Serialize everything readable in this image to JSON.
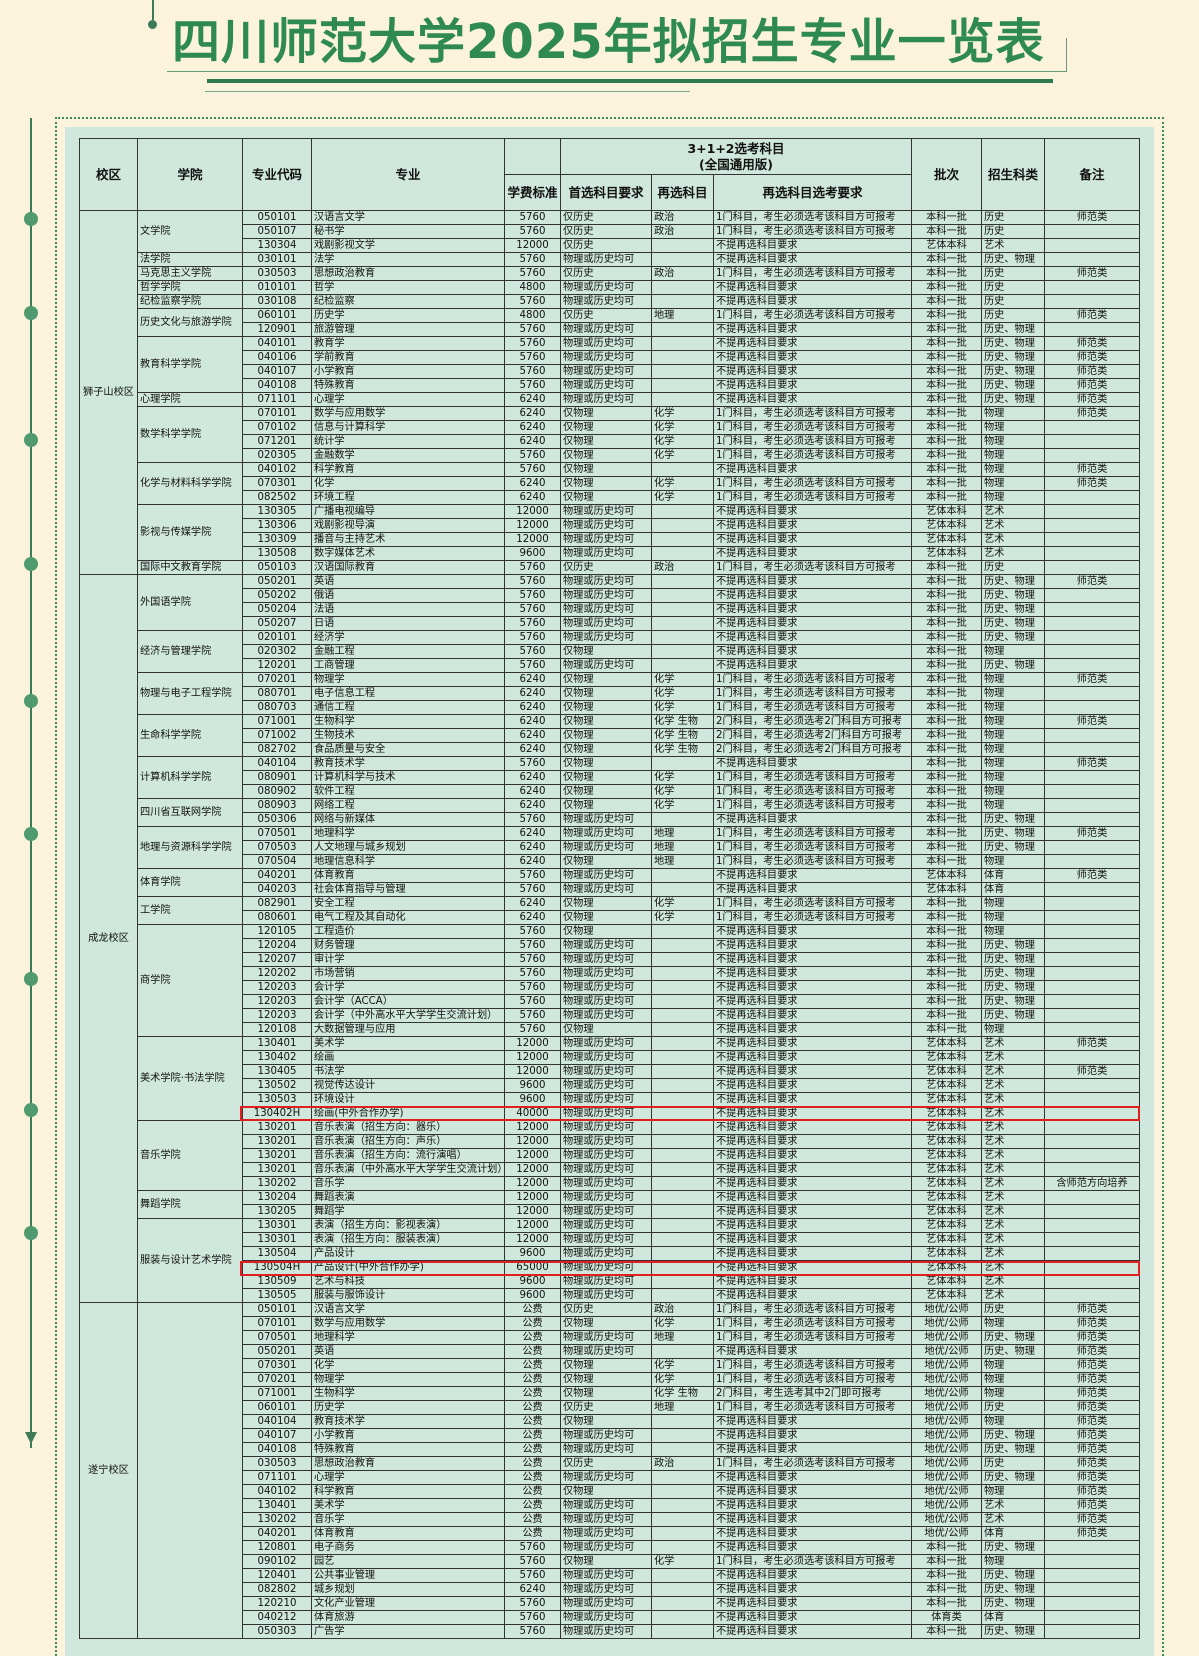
{
  "title": "四川师范大学2025年拟招生专业一览表",
  "header": {
    "campus": "校区",
    "college": "学院",
    "code": "专业代码",
    "major": "专业",
    "subjects_group": "3+1+2选考科目",
    "subjects_group_sub": "(全国通用版)",
    "fee": "学费标准",
    "first": "首选科目要求",
    "resel": "再选科目",
    "resel_req": "再选科目选考要求",
    "batch": "批次",
    "category": "招生科类",
    "note": "备注"
  },
  "rows": [
    [
      "狮子山校区",
      "文学院",
      "050101",
      "汉语言文学",
      "5760",
      "仅历史",
      "政治",
      "1门科目，考生必须选考该科目方可报考",
      "本科一批",
      "历史",
      "师范类"
    ],
    [
      "狮子山校区",
      "文学院",
      "050107",
      "秘书学",
      "5760",
      "仅历史",
      "政治",
      "1门科目，考生必须选考该科目方可报考",
      "本科一批",
      "历史",
      ""
    ],
    [
      "狮子山校区",
      "文学院",
      "130304",
      "戏剧影视文学",
      "12000",
      "仅历史",
      "",
      "不提再选科目要求",
      "艺体本科",
      "艺术",
      ""
    ],
    [
      "狮子山校区",
      "法学院",
      "030101",
      "法学",
      "5760",
      "物理或历史均可",
      "",
      "不提再选科目要求",
      "本科一批",
      "历史、物理",
      ""
    ],
    [
      "狮子山校区",
      "马克思主义学院",
      "030503",
      "思想政治教育",
      "5760",
      "仅历史",
      "政治",
      "1门科目，考生必须选考该科目方可报考",
      "本科一批",
      "历史",
      "师范类"
    ],
    [
      "狮子山校区",
      "哲学学院",
      "010101",
      "哲学",
      "4800",
      "物理或历史均可",
      "",
      "不提再选科目要求",
      "本科一批",
      "历史",
      ""
    ],
    [
      "狮子山校区",
      "纪检监察学院",
      "030108",
      "纪检监察",
      "5760",
      "物理或历史均可",
      "",
      "不提再选科目要求",
      "本科一批",
      "历史",
      ""
    ],
    [
      "狮子山校区",
      "历史文化与旅游学院",
      "060101",
      "历史学",
      "4800",
      "仅历史",
      "地理",
      "1门科目，考生必须选考该科目方可报考",
      "本科一批",
      "历史",
      "师范类"
    ],
    [
      "狮子山校区",
      "历史文化与旅游学院",
      "120901",
      "旅游管理",
      "5760",
      "物理或历史均可",
      "",
      "不提再选科目要求",
      "本科一批",
      "历史、物理",
      ""
    ],
    [
      "狮子山校区",
      "教育科学学院",
      "040101",
      "教育学",
      "5760",
      "物理或历史均可",
      "",
      "不提再选科目要求",
      "本科一批",
      "历史、物理",
      "师范类"
    ],
    [
      "狮子山校区",
      "教育科学学院",
      "040106",
      "学前教育",
      "5760",
      "物理或历史均可",
      "",
      "不提再选科目要求",
      "本科一批",
      "历史、物理",
      "师范类"
    ],
    [
      "狮子山校区",
      "教育科学学院",
      "040107",
      "小学教育",
      "5760",
      "物理或历史均可",
      "",
      "不提再选科目要求",
      "本科一批",
      "历史、物理",
      "师范类"
    ],
    [
      "狮子山校区",
      "教育科学学院",
      "040108",
      "特殊教育",
      "5760",
      "物理或历史均可",
      "",
      "不提再选科目要求",
      "本科一批",
      "历史、物理",
      "师范类"
    ],
    [
      "狮子山校区",
      "心理学院",
      "071101",
      "心理学",
      "6240",
      "物理或历史均可",
      "",
      "不提再选科目要求",
      "本科一批",
      "历史、物理",
      "师范类"
    ],
    [
      "狮子山校区",
      "数学科学学院",
      "070101",
      "数学与应用数学",
      "6240",
      "仅物理",
      "化学",
      "1门科目，考生必须选考该科目方可报考",
      "本科一批",
      "物理",
      "师范类"
    ],
    [
      "狮子山校区",
      "数学科学学院",
      "070102",
      "信息与计算科学",
      "6240",
      "仅物理",
      "化学",
      "1门科目，考生必须选考该科目方可报考",
      "本科一批",
      "物理",
      ""
    ],
    [
      "狮子山校区",
      "数学科学学院",
      "071201",
      "统计学",
      "6240",
      "仅物理",
      "化学",
      "1门科目，考生必须选考该科目方可报考",
      "本科一批",
      "物理",
      ""
    ],
    [
      "狮子山校区",
      "数学科学学院",
      "020305",
      "金融数学",
      "5760",
      "仅物理",
      "化学",
      "1门科目，考生必须选考该科目方可报考",
      "本科一批",
      "物理",
      ""
    ],
    [
      "狮子山校区",
      "化学与材料科学学院",
      "040102",
      "科学教育",
      "5760",
      "仅物理",
      "",
      "不提再选科目要求",
      "本科一批",
      "物理",
      "师范类"
    ],
    [
      "狮子山校区",
      "化学与材料科学学院",
      "070301",
      "化学",
      "6240",
      "仅物理",
      "化学",
      "1门科目，考生必须选考该科目方可报考",
      "本科一批",
      "物理",
      "师范类"
    ],
    [
      "狮子山校区",
      "化学与材料科学学院",
      "082502",
      "环境工程",
      "6240",
      "仅物理",
      "化学",
      "1门科目，考生必须选考该科目方可报考",
      "本科一批",
      "物理",
      ""
    ],
    [
      "狮子山校区",
      "影视与传媒学院",
      "130305",
      "广播电视编导",
      "12000",
      "物理或历史均可",
      "",
      "不提再选科目要求",
      "艺体本科",
      "艺术",
      ""
    ],
    [
      "狮子山校区",
      "影视与传媒学院",
      "130306",
      "戏剧影视导演",
      "12000",
      "物理或历史均可",
      "",
      "不提再选科目要求",
      "艺体本科",
      "艺术",
      ""
    ],
    [
      "狮子山校区",
      "影视与传媒学院",
      "130309",
      "播音与主持艺术",
      "12000",
      "物理或历史均可",
      "",
      "不提再选科目要求",
      "艺体本科",
      "艺术",
      ""
    ],
    [
      "狮子山校区",
      "影视与传媒学院",
      "130508",
      "数字媒体艺术",
      "9600",
      "物理或历史均可",
      "",
      "不提再选科目要求",
      "艺体本科",
      "艺术",
      ""
    ],
    [
      "狮子山校区",
      "国际中文教育学院",
      "050103",
      "汉语国际教育",
      "5760",
      "仅历史",
      "政治",
      "1门科目，考生必须选考该科目方可报考",
      "本科一批",
      "历史",
      ""
    ],
    [
      "成龙校区",
      "外国语学院",
      "050201",
      "英语",
      "5760",
      "物理或历史均可",
      "",
      "不提再选科目要求",
      "本科一批",
      "历史、物理",
      "师范类"
    ],
    [
      "成龙校区",
      "外国语学院",
      "050202",
      "俄语",
      "5760",
      "物理或历史均可",
      "",
      "不提再选科目要求",
      "本科一批",
      "历史、物理",
      ""
    ],
    [
      "成龙校区",
      "外国语学院",
      "050204",
      "法语",
      "5760",
      "物理或历史均可",
      "",
      "不提再选科目要求",
      "本科一批",
      "历史、物理",
      ""
    ],
    [
      "成龙校区",
      "外国语学院",
      "050207",
      "日语",
      "5760",
      "物理或历史均可",
      "",
      "不提再选科目要求",
      "本科一批",
      "历史、物理",
      ""
    ],
    [
      "成龙校区",
      "经济与管理学院",
      "020101",
      "经济学",
      "5760",
      "物理或历史均可",
      "",
      "不提再选科目要求",
      "本科一批",
      "历史、物理",
      ""
    ],
    [
      "成龙校区",
      "经济与管理学院",
      "020302",
      "金融工程",
      "5760",
      "仅物理",
      "",
      "不提再选科目要求",
      "本科一批",
      "物理",
      ""
    ],
    [
      "成龙校区",
      "经济与管理学院",
      "120201",
      "工商管理",
      "5760",
      "物理或历史均可",
      "",
      "不提再选科目要求",
      "本科一批",
      "历史、物理",
      ""
    ],
    [
      "成龙校区",
      "物理与电子工程学院",
      "070201",
      "物理学",
      "6240",
      "仅物理",
      "化学",
      "1门科目，考生必须选考该科目方可报考",
      "本科一批",
      "物理",
      "师范类"
    ],
    [
      "成龙校区",
      "物理与电子工程学院",
      "080701",
      "电子信息工程",
      "6240",
      "仅物理",
      "化学",
      "1门科目，考生必须选考该科目方可报考",
      "本科一批",
      "物理",
      ""
    ],
    [
      "成龙校区",
      "物理与电子工程学院",
      "080703",
      "通信工程",
      "6240",
      "仅物理",
      "化学",
      "1门科目，考生必须选考该科目方可报考",
      "本科一批",
      "物理",
      ""
    ],
    [
      "成龙校区",
      "生命科学学院",
      "071001",
      "生物科学",
      "6240",
      "仅物理",
      "化学 生物",
      "2门科目，考生必须选考2门科目方可报考",
      "本科一批",
      "物理",
      "师范类"
    ],
    [
      "成龙校区",
      "生命科学学院",
      "071002",
      "生物技术",
      "6240",
      "仅物理",
      "化学 生物",
      "2门科目，考生必须选考2门科目方可报考",
      "本科一批",
      "物理",
      ""
    ],
    [
      "成龙校区",
      "生命科学学院",
      "082702",
      "食品质量与安全",
      "6240",
      "仅物理",
      "化学 生物",
      "2门科目，考生必须选考2门科目方可报考",
      "本科一批",
      "物理",
      ""
    ],
    [
      "成龙校区",
      "计算机科学学院",
      "040104",
      "教育技术学",
      "5760",
      "仅物理",
      "",
      "不提再选科目要求",
      "本科一批",
      "物理",
      "师范类"
    ],
    [
      "成龙校区",
      "计算机科学学院",
      "080901",
      "计算机科学与技术",
      "6240",
      "仅物理",
      "化学",
      "1门科目，考生必须选考该科目方可报考",
      "本科一批",
      "物理",
      ""
    ],
    [
      "成龙校区",
      "计算机科学学院",
      "080902",
      "软件工程",
      "6240",
      "仅物理",
      "化学",
      "1门科目，考生必须选考该科目方可报考",
      "本科一批",
      "物理",
      ""
    ],
    [
      "成龙校区",
      "四川省互联网学院",
      "080903",
      "网络工程",
      "6240",
      "仅物理",
      "化学",
      "1门科目，考生必须选考该科目方可报考",
      "本科一批",
      "物理",
      ""
    ],
    [
      "成龙校区",
      "四川省互联网学院",
      "050306",
      "网络与新媒体",
      "5760",
      "物理或历史均可",
      "",
      "不提再选科目要求",
      "本科一批",
      "历史、物理",
      ""
    ],
    [
      "成龙校区",
      "地理与资源科学学院",
      "070501",
      "地理科学",
      "6240",
      "物理或历史均可",
      "地理",
      "1门科目，考生必须选考该科目方可报考",
      "本科一批",
      "历史、物理",
      "师范类"
    ],
    [
      "成龙校区",
      "地理与资源科学学院",
      "070503",
      "人文地理与城乡规划",
      "6240",
      "物理或历史均可",
      "地理",
      "1门科目，考生必须选考该科目方可报考",
      "本科一批",
      "历史、物理",
      ""
    ],
    [
      "成龙校区",
      "地理与资源科学学院",
      "070504",
      "地理信息科学",
      "6240",
      "仅物理",
      "地理",
      "1门科目，考生必须选考该科目方可报考",
      "本科一批",
      "物理",
      ""
    ],
    [
      "成龙校区",
      "体育学院",
      "040201",
      "体育教育",
      "5760",
      "物理或历史均可",
      "",
      "不提再选科目要求",
      "艺体本科",
      "体育",
      "师范类"
    ],
    [
      "成龙校区",
      "体育学院",
      "040203",
      "社会体育指导与管理",
      "5760",
      "物理或历史均可",
      "",
      "不提再选科目要求",
      "艺体本科",
      "体育",
      ""
    ],
    [
      "成龙校区",
      "工学院",
      "082901",
      "安全工程",
      "6240",
      "仅物理",
      "化学",
      "1门科目，考生必须选考该科目方可报考",
      "本科一批",
      "物理",
      ""
    ],
    [
      "成龙校区",
      "工学院",
      "080601",
      "电气工程及其自动化",
      "6240",
      "仅物理",
      "化学",
      "1门科目，考生必须选考该科目方可报考",
      "本科一批",
      "物理",
      ""
    ],
    [
      "成龙校区",
      "商学院",
      "120105",
      "工程造价",
      "5760",
      "仅物理",
      "",
      "不提再选科目要求",
      "本科一批",
      "物理",
      ""
    ],
    [
      "成龙校区",
      "商学院",
      "120204",
      "财务管理",
      "5760",
      "物理或历史均可",
      "",
      "不提再选科目要求",
      "本科一批",
      "历史、物理",
      ""
    ],
    [
      "成龙校区",
      "商学院",
      "120207",
      "审计学",
      "5760",
      "物理或历史均可",
      "",
      "不提再选科目要求",
      "本科一批",
      "历史、物理",
      ""
    ],
    [
      "成龙校区",
      "商学院",
      "120202",
      "市场营销",
      "5760",
      "物理或历史均可",
      "",
      "不提再选科目要求",
      "本科一批",
      "历史、物理",
      ""
    ],
    [
      "成龙校区",
      "商学院",
      "120203",
      "会计学",
      "5760",
      "物理或历史均可",
      "",
      "不提再选科目要求",
      "本科一批",
      "历史、物理",
      ""
    ],
    [
      "成龙校区",
      "商学院",
      "120203",
      "会计学（ACCA）",
      "5760",
      "物理或历史均可",
      "",
      "不提再选科目要求",
      "本科一批",
      "历史、物理",
      ""
    ],
    [
      "成龙校区",
      "商学院",
      "120203",
      "会计学（中外高水平大学学生交流计划）",
      "5760",
      "物理或历史均可",
      "",
      "不提再选科目要求",
      "本科一批",
      "历史、物理",
      ""
    ],
    [
      "成龙校区",
      "商学院",
      "120108",
      "大数据管理与应用",
      "5760",
      "仅物理",
      "",
      "不提再选科目要求",
      "本科一批",
      "物理",
      ""
    ],
    [
      "成龙校区",
      "美术学院·书法学院",
      "130401",
      "美术学",
      "12000",
      "物理或历史均可",
      "",
      "不提再选科目要求",
      "艺体本科",
      "艺术",
      "师范类"
    ],
    [
      "成龙校区",
      "美术学院·书法学院",
      "130402",
      "绘画",
      "12000",
      "物理或历史均可",
      "",
      "不提再选科目要求",
      "艺体本科",
      "艺术",
      ""
    ],
    [
      "成龙校区",
      "美术学院·书法学院",
      "130405",
      "书法学",
      "12000",
      "物理或历史均可",
      "",
      "不提再选科目要求",
      "艺体本科",
      "艺术",
      "师范类"
    ],
    [
      "成龙校区",
      "美术学院·书法学院",
      "130502",
      "视觉传达设计",
      "9600",
      "物理或历史均可",
      "",
      "不提再选科目要求",
      "艺体本科",
      "艺术",
      ""
    ],
    [
      "成龙校区",
      "美术学院·书法学院",
      "130503",
      "环境设计",
      "9600",
      "物理或历史均可",
      "",
      "不提再选科目要求",
      "艺体本科",
      "艺术",
      ""
    ],
    [
      "成龙校区",
      "美术学院·书法学院",
      "130402H",
      "绘画(中外合作办学)",
      "40000",
      "物理或历史均可",
      "",
      "不提再选科目要求",
      "艺体本科",
      "艺术",
      ""
    ],
    [
      "成龙校区",
      "音乐学院",
      "130201",
      "音乐表演（招生方向：器乐）",
      "12000",
      "物理或历史均可",
      "",
      "不提再选科目要求",
      "艺体本科",
      "艺术",
      ""
    ],
    [
      "成龙校区",
      "音乐学院",
      "130201",
      "音乐表演（招生方向：声乐）",
      "12000",
      "物理或历史均可",
      "",
      "不提再选科目要求",
      "艺体本科",
      "艺术",
      ""
    ],
    [
      "成龙校区",
      "音乐学院",
      "130201",
      "音乐表演（招生方向：流行演唱）",
      "12000",
      "物理或历史均可",
      "",
      "不提再选科目要求",
      "艺体本科",
      "艺术",
      ""
    ],
    [
      "成龙校区",
      "音乐学院",
      "130201",
      "音乐表演（中外高水平大学学生交流计划）",
      "12000",
      "物理或历史均可",
      "",
      "不提再选科目要求",
      "艺体本科",
      "艺术",
      ""
    ],
    [
      "成龙校区",
      "音乐学院",
      "130202",
      "音乐学",
      "12000",
      "物理或历史均可",
      "",
      "不提再选科目要求",
      "艺体本科",
      "艺术",
      "含师范方向培养"
    ],
    [
      "成龙校区",
      "舞蹈学院",
      "130204",
      "舞蹈表演",
      "12000",
      "物理或历史均可",
      "",
      "不提再选科目要求",
      "艺体本科",
      "艺术",
      ""
    ],
    [
      "成龙校区",
      "舞蹈学院",
      "130205",
      "舞蹈学",
      "12000",
      "物理或历史均可",
      "",
      "不提再选科目要求",
      "艺体本科",
      "艺术",
      ""
    ],
    [
      "成龙校区",
      "服装与设计艺术学院",
      "130301",
      "表演（招生方向：影视表演）",
      "12000",
      "物理或历史均可",
      "",
      "不提再选科目要求",
      "艺体本科",
      "艺术",
      ""
    ],
    [
      "成龙校区",
      "服装与设计艺术学院",
      "130301",
      "表演（招生方向：服装表演）",
      "12000",
      "物理或历史均可",
      "",
      "不提再选科目要求",
      "艺体本科",
      "艺术",
      ""
    ],
    [
      "成龙校区",
      "服装与设计艺术学院",
      "130504",
      "产品设计",
      "9600",
      "物理或历史均可",
      "",
      "不提再选科目要求",
      "艺体本科",
      "艺术",
      ""
    ],
    [
      "成龙校区",
      "服装与设计艺术学院",
      "130504H",
      "产品设计(中外合作办学)",
      "65000",
      "物理或历史均可",
      "",
      "不提再选科目要求",
      "艺体本科",
      "艺术",
      ""
    ],
    [
      "成龙校区",
      "服装与设计艺术学院",
      "130509",
      "艺术与科技",
      "9600",
      "物理或历史均可",
      "",
      "不提再选科目要求",
      "艺体本科",
      "艺术",
      ""
    ],
    [
      "成龙校区",
      "服装与设计艺术学院",
      "130505",
      "服装与服饰设计",
      "9600",
      "物理或历史均可",
      "",
      "不提再选科目要求",
      "艺体本科",
      "艺术",
      ""
    ],
    [
      "遂宁校区",
      "",
      "050101",
      "汉语言文学",
      "公费",
      "仅历史",
      "政治",
      "1门科目，考生必须选考该科目方可报考",
      "地优/公师",
      "历史",
      "师范类"
    ],
    [
      "遂宁校区",
      "",
      "070101",
      "数学与应用数学",
      "公费",
      "仅物理",
      "化学",
      "1门科目，考生必须选考该科目方可报考",
      "地优/公师",
      "物理",
      "师范类"
    ],
    [
      "遂宁校区",
      "",
      "070501",
      "地理科学",
      "公费",
      "物理或历史均可",
      "地理",
      "1门科目，考生必须选考该科目方可报考",
      "地优/公师",
      "历史、物理",
      "师范类"
    ],
    [
      "遂宁校区",
      "",
      "050201",
      "英语",
      "公费",
      "物理或历史均可",
      "",
      "不提再选科目要求",
      "地优/公师",
      "历史、物理",
      "师范类"
    ],
    [
      "遂宁校区",
      "",
      "070301",
      "化学",
      "公费",
      "仅物理",
      "化学",
      "1门科目，考生必须选考该科目方可报考",
      "地优/公师",
      "物理",
      "师范类"
    ],
    [
      "遂宁校区",
      "",
      "070201",
      "物理学",
      "公费",
      "仅物理",
      "化学",
      "1门科目，考生必须选考该科目方可报考",
      "地优/公师",
      "物理",
      "师范类"
    ],
    [
      "遂宁校区",
      "",
      "071001",
      "生物科学",
      "公费",
      "仅物理",
      "化学 生物",
      "2门科目，考生选考其中2门即可报考",
      "地优/公师",
      "物理",
      "师范类"
    ],
    [
      "遂宁校区",
      "",
      "060101",
      "历史学",
      "公费",
      "仅历史",
      "地理",
      "1门科目，考生必须选考该科目方可报考",
      "地优/公师",
      "历史",
      "师范类"
    ],
    [
      "遂宁校区",
      "",
      "040104",
      "教育技术学",
      "公费",
      "仅物理",
      "",
      "不提再选科目要求",
      "地优/公师",
      "物理",
      "师范类"
    ],
    [
      "遂宁校区",
      "",
      "040107",
      "小学教育",
      "公费",
      "物理或历史均可",
      "",
      "不提再选科目要求",
      "地优/公师",
      "历史、物理",
      "师范类"
    ],
    [
      "遂宁校区",
      "",
      "040108",
      "特殊教育",
      "公费",
      "物理或历史均可",
      "",
      "不提再选科目要求",
      "地优/公师",
      "历史、物理",
      "师范类"
    ],
    [
      "遂宁校区",
      "",
      "030503",
      "思想政治教育",
      "公费",
      "仅历史",
      "政治",
      "1门科目，考生必须选考该科目方可报考",
      "地优/公师",
      "历史",
      "师范类"
    ],
    [
      "遂宁校区",
      "",
      "071101",
      "心理学",
      "公费",
      "物理或历史均可",
      "",
      "不提再选科目要求",
      "地优/公师",
      "历史、物理",
      "师范类"
    ],
    [
      "遂宁校区",
      "",
      "040102",
      "科学教育",
      "公费",
      "仅物理",
      "",
      "不提再选科目要求",
      "地优/公师",
      "物理",
      "师范类"
    ],
    [
      "遂宁校区",
      "",
      "130401",
      "美术学",
      "公费",
      "物理或历史均可",
      "",
      "不提再选科目要求",
      "地优/公师",
      "艺术",
      "师范类"
    ],
    [
      "遂宁校区",
      "",
      "130202",
      "音乐学",
      "公费",
      "物理或历史均可",
      "",
      "不提再选科目要求",
      "地优/公师",
      "艺术",
      "师范类"
    ],
    [
      "遂宁校区",
      "",
      "040201",
      "体育教育",
      "公费",
      "物理或历史均可",
      "",
      "不提再选科目要求",
      "地优/公师",
      "体育",
      "师范类"
    ],
    [
      "遂宁校区",
      "",
      "120801",
      "电子商务",
      "5760",
      "物理或历史均可",
      "",
      "不提再选科目要求",
      "本科一批",
      "历史、物理",
      ""
    ],
    [
      "遂宁校区",
      "",
      "090102",
      "园艺",
      "5760",
      "仅物理",
      "化学",
      "1门科目，考生必须选考该科目方可报考",
      "本科一批",
      "物理",
      ""
    ],
    [
      "遂宁校区",
      "",
      "120401",
      "公共事业管理",
      "5760",
      "物理或历史均可",
      "",
      "不提再选科目要求",
      "本科一批",
      "历史、物理",
      ""
    ],
    [
      "遂宁校区",
      "",
      "082802",
      "城乡规划",
      "6240",
      "物理或历史均可",
      "",
      "不提再选科目要求",
      "本科一批",
      "历史、物理",
      ""
    ],
    [
      "遂宁校区",
      "",
      "120210",
      "文化产业管理",
      "5760",
      "物理或历史均可",
      "",
      "不提再选科目要求",
      "本科一批",
      "历史、物理",
      ""
    ],
    [
      "遂宁校区",
      "",
      "040212",
      "体育旅游",
      "5760",
      "物理或历史均可",
      "",
      "不提再选科目要求",
      "体育类",
      "体育",
      ""
    ],
    [
      "遂宁校区",
      "",
      "050303",
      "广告学",
      "5760",
      "物理或历史均可",
      "",
      "不提再选科目要求",
      "本科一批",
      "历史、物理",
      ""
    ]
  ]
}
